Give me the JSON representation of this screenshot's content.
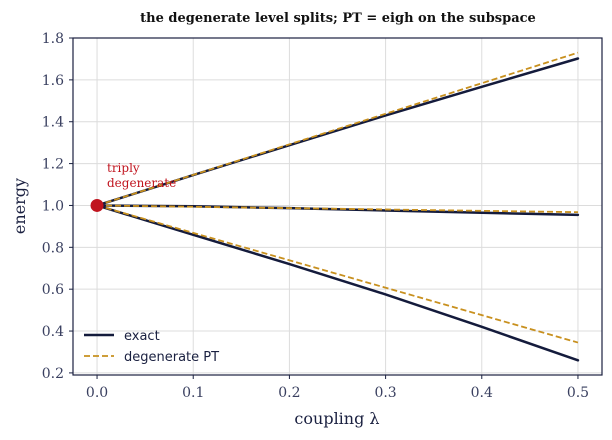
{
  "chart_data": {
    "type": "line",
    "title": "the degenerate level splits; PT = eigh on the subspace",
    "xlabel": "coupling λ",
    "ylabel": "energy",
    "xlim": [
      -0.025,
      0.525
    ],
    "ylim": [
      0.19,
      1.8
    ],
    "xticks": [
      "0.0",
      "0.1",
      "0.2",
      "0.3",
      "0.4",
      "0.5"
    ],
    "yticks": [
      "0.2",
      "0.4",
      "0.6",
      "0.8",
      "1.0",
      "1.2",
      "1.4",
      "1.6",
      "1.8"
    ],
    "grid": true,
    "legend_position": "lower-left",
    "annotation": {
      "text_lines": [
        "triply",
        "degenerate"
      ],
      "x": 0.0,
      "y": 1.0
    },
    "series": [
      {
        "name": "exact",
        "style": "solid",
        "color": "#141b3c",
        "lines": [
          {
            "x": [
              0.0,
              0.1,
              0.2,
              0.3,
              0.4,
              0.5
            ],
            "y": [
              1.0,
              1.145,
              1.288,
              1.43,
              1.567,
              1.702
            ]
          },
          {
            "x": [
              0.0,
              0.1,
              0.2,
              0.3,
              0.4,
              0.5
            ],
            "y": [
              1.0,
              0.996,
              0.987,
              0.976,
              0.965,
              0.955
            ]
          },
          {
            "x": [
              0.0,
              0.1,
              0.2,
              0.3,
              0.4,
              0.5
            ],
            "y": [
              1.0,
              0.86,
              0.72,
              0.575,
              0.42,
              0.26
            ]
          }
        ]
      },
      {
        "name": "degenerate PT",
        "style": "dashed",
        "color": "#c8901e",
        "lines": [
          {
            "x": [
              0.0,
              0.5
            ],
            "y": [
              1.0,
              1.73
            ]
          },
          {
            "x": [
              0.0,
              0.5
            ],
            "y": [
              1.0,
              0.968
            ]
          },
          {
            "x": [
              0.0,
              0.5
            ],
            "y": [
              1.0,
              0.345
            ]
          }
        ]
      }
    ],
    "colors": {
      "marker": "#c0141e",
      "grid": "#dcdcdc",
      "frame": "#1a2040"
    }
  }
}
